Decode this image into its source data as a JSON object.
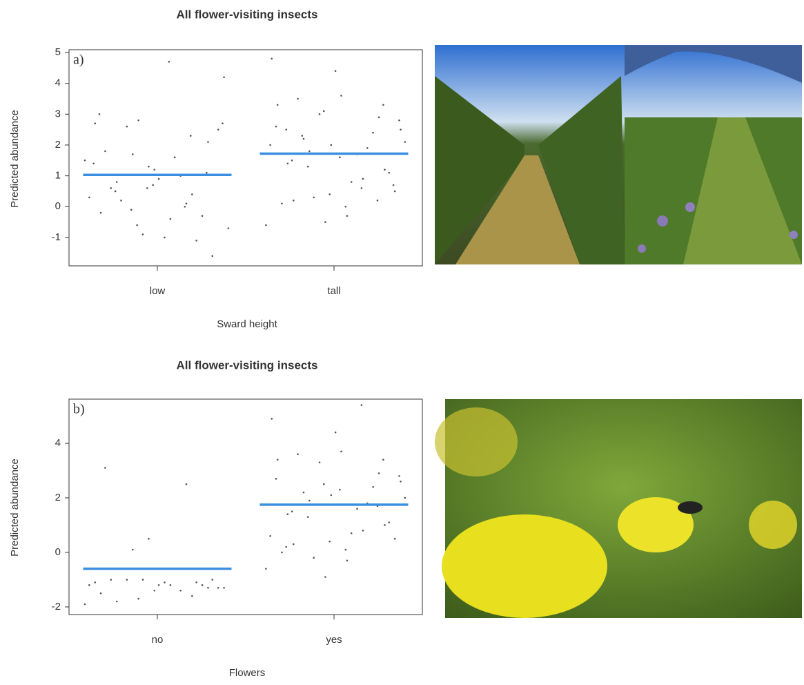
{
  "chart_data": [
    {
      "type": "strip",
      "title": "All flower-visiting insects",
      "panel_label": "a)",
      "x_label": "Sward height",
      "y_label": "Predicted abundance",
      "categories": [
        "low",
        "tall"
      ],
      "fit": [
        1.03,
        1.72
      ],
      "point_color": "#555555",
      "fit_color": "#3a8fe0",
      "points": [
        [
          1.5,
          2.8,
          0.4,
          -0.2,
          1.2,
          2.1,
          0.8,
          -0.4,
          4.2,
          1.7,
          0.1,
          2.7,
          1.3,
          -0.3,
          0.6,
          -1.0,
          2.5,
          2.6,
          1.0,
          0.3,
          -0.9,
          -1.1,
          1.8,
          0.9,
          -1.6,
          0.2,
          1.6,
          -0.7,
          -0.6,
          2.3,
          3.0,
          0.7,
          1.1,
          0.5,
          4.7,
          2.7,
          -0.1,
          0.0,
          1.4,
          0.6
        ],
        [
          3.3,
          2.0,
          1.2,
          0.2,
          -0.3,
          2.5,
          1.8,
          0.9,
          4.8,
          -0.5,
          2.9,
          1.4,
          3.6,
          0.5,
          2.2,
          1.7,
          -0.6,
          3.0,
          2.4,
          0.1,
          4.4,
          1.1,
          3.5,
          0.8,
          2.1,
          0.3,
          1.9,
          2.6,
          0.4,
          3.3,
          1.5,
          0.0,
          2.8,
          1.3,
          0.6,
          2.0,
          3.1,
          0.2,
          2.5,
          1.6,
          0.7,
          2.3
        ]
      ],
      "ylim": [
        -1.92,
        5.09
      ],
      "yticks": [
        -1,
        0,
        1,
        2,
        3,
        4,
        5
      ]
    },
    {
      "type": "strip",
      "title": "All flower-visiting insects",
      "panel_label": "b)",
      "x_label": "Flowers",
      "y_label": "Predicted abundance",
      "categories": [
        "no",
        "yes"
      ],
      "fit": [
        -0.6,
        1.75
      ],
      "point_color": "#555555",
      "fit_color": "#3a8fe0",
      "points": [
        [
          -1.9,
          -1.7,
          -1.6,
          -1.5,
          -1.4,
          -1.3,
          -1.8,
          -1.2,
          -1.3,
          0.1,
          2.5,
          -1.1,
          0.5,
          -1.2,
          -1.0,
          -1.1,
          -1.3,
          -1.0,
          -1.4,
          -1.2,
          -1.0,
          -1.1,
          3.1,
          -1.2,
          -1.0
        ],
        [
          3.4,
          2.1,
          1.0,
          0.3,
          -0.3,
          2.6,
          1.9,
          0.8,
          4.9,
          -0.9,
          2.9,
          1.4,
          3.7,
          0.5,
          2.2,
          1.6,
          -0.6,
          3.3,
          2.4,
          0.0,
          4.4,
          1.1,
          3.6,
          0.7,
          2.0,
          -0.2,
          1.8,
          2.7,
          0.4,
          3.4,
          1.5,
          0.1,
          2.8,
          1.3,
          5.4,
          0.6,
          2.5,
          1.7,
          0.2,
          2.3
        ]
      ],
      "ylim": [
        -2.28,
        5.62
      ],
      "yticks": [
        -2,
        0,
        2,
        4
      ]
    }
  ]
}
